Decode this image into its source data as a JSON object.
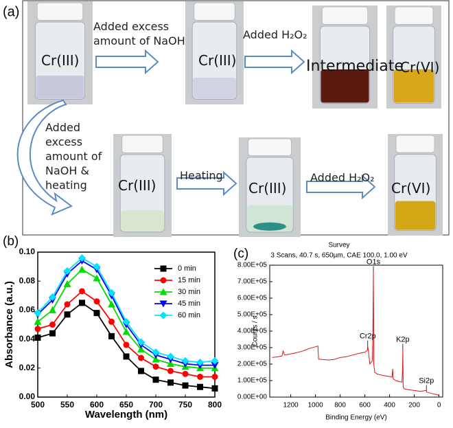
{
  "panel_a": {
    "label": "(a)",
    "row1": {
      "vial1": "Cr(III)",
      "arrow1": "Added excess amount of NaOH",
      "vial2": "Cr(III)",
      "arrow2": "Added H₂O₂",
      "vial3": "Intermediate",
      "vial4": "Cr(VI)"
    },
    "row2": {
      "arrow0": "Added excess amount of NaOH & heating",
      "vial1": "Cr(III)",
      "arrow1": "Heating",
      "vial2": "Cr(III)",
      "arrow2": "Added H₂O₂",
      "vial3": "Cr(VI)"
    }
  },
  "chart_data": [
    {
      "type": "line",
      "panel_label": "(b)",
      "xlabel": "Wavelength (nm)",
      "ylabel": "Absorbance (a.u.)",
      "x": [
        500,
        525,
        550,
        575,
        600,
        625,
        650,
        675,
        700,
        725,
        750,
        775,
        800
      ],
      "series": [
        {
          "name": "0 min",
          "color": "#000000",
          "marker": "square",
          "values": [
            0.041,
            0.044,
            0.057,
            0.065,
            0.058,
            0.042,
            0.028,
            0.018,
            0.012,
            0.01,
            0.008,
            0.007,
            0.006
          ]
        },
        {
          "name": "15 min",
          "color": "#ff0000",
          "marker": "circle",
          "values": [
            0.047,
            0.05,
            0.064,
            0.073,
            0.066,
            0.052,
            0.036,
            0.027,
            0.021,
            0.018,
            0.016,
            0.014,
            0.014
          ]
        },
        {
          "name": "30 min",
          "color": "#00dd00",
          "marker": "triangle-up",
          "values": [
            0.052,
            0.06,
            0.078,
            0.088,
            0.082,
            0.064,
            0.045,
            0.033,
            0.026,
            0.023,
            0.021,
            0.02,
            0.02
          ]
        },
        {
          "name": "45 min",
          "color": "#0000ff",
          "marker": "triangle-down",
          "values": [
            0.057,
            0.067,
            0.085,
            0.094,
            0.088,
            0.07,
            0.05,
            0.036,
            0.029,
            0.026,
            0.023,
            0.022,
            0.022
          ]
        },
        {
          "name": "60 min",
          "color": "#00e5ff",
          "marker": "diamond",
          "values": [
            0.058,
            0.069,
            0.087,
            0.096,
            0.09,
            0.072,
            0.052,
            0.038,
            0.031,
            0.028,
            0.025,
            0.024,
            0.025
          ]
        }
      ],
      "xlim": [
        500,
        800
      ],
      "xticks": [
        500,
        550,
        600,
        650,
        700,
        750,
        800
      ],
      "ylim": [
        0,
        0.1
      ],
      "yticks": [
        {
          "value": 0,
          "label": "0.00"
        },
        {
          "value": 0.02,
          "label": "0.02"
        },
        {
          "value": 0.04,
          "label": "0.04"
        },
        {
          "value": 0.06,
          "label": "0.06"
        },
        {
          "value": 0.08,
          "label": "0.08"
        },
        {
          "value": 0.1,
          "label": "0.10"
        }
      ],
      "legend": "upper right"
    },
    {
      "type": "line",
      "panel_label": "(c)",
      "title": "Survey",
      "subtitle": "3 Scans,  40.7 s,  650µm,  CAE 100.0,  1.00 eV",
      "xlabel": "Binding Energy (eV)",
      "ylabel": "Counts / s",
      "x": [
        1350,
        1300,
        1270,
        1262,
        1250,
        1200,
        1150,
        1100,
        1050,
        1000,
        980,
        975,
        900,
        850,
        800,
        750,
        700,
        650,
        600,
        580,
        577,
        570,
        560,
        540,
        535,
        531,
        528,
        520,
        500,
        450,
        400,
        380,
        375,
        370,
        350,
        300,
        295,
        293,
        290,
        280,
        250,
        200,
        150,
        102,
        100,
        50,
        20,
        0
      ],
      "series": [
        {
          "color": "#dd1111",
          "values": [
            240000,
            245000,
            250000,
            280000,
            255000,
            262000,
            270000,
            280000,
            295000,
            305000,
            310000,
            230000,
            225000,
            228000,
            240000,
            245000,
            255000,
            265000,
            272000,
            285000,
            310000,
            270000,
            200000,
            220000,
            400000,
            760000,
            200000,
            150000,
            140000,
            130000,
            125000,
            120000,
            170000,
            110000,
            100000,
            90000,
            170000,
            290000,
            60000,
            50000,
            45000,
            40000,
            35000,
            40000,
            30000,
            20000,
            15000,
            10000
          ]
        }
      ],
      "xlim": [
        1370,
        -30
      ],
      "xticks": [
        1200,
        1000,
        800,
        600,
        400,
        200,
        0
      ],
      "ylim": [
        0,
        800000
      ],
      "yticks": [
        {
          "value": 0,
          "label": "0.00E+00"
        },
        {
          "value": 100000,
          "label": "1.00E+05"
        },
        {
          "value": 200000,
          "label": "2.00E+05"
        },
        {
          "value": 300000,
          "label": "3.00E+05"
        },
        {
          "value": 400000,
          "label": "4.00E+05"
        },
        {
          "value": 500000,
          "label": "5.00E+05"
        },
        {
          "value": 600000,
          "label": "6.00E+05"
        },
        {
          "value": 700000,
          "label": "7.00E+05"
        },
        {
          "value": 800000,
          "label": "8.00E+05"
        }
      ],
      "annotations": [
        {
          "text": "O1s",
          "x": 531,
          "y": 760000
        },
        {
          "text": "Cr2p",
          "x": 577,
          "y": 310000
        },
        {
          "text": "K2p",
          "x": 293,
          "y": 290000
        },
        {
          "text": "Si2p",
          "x": 102,
          "y": 40000
        }
      ]
    }
  ]
}
